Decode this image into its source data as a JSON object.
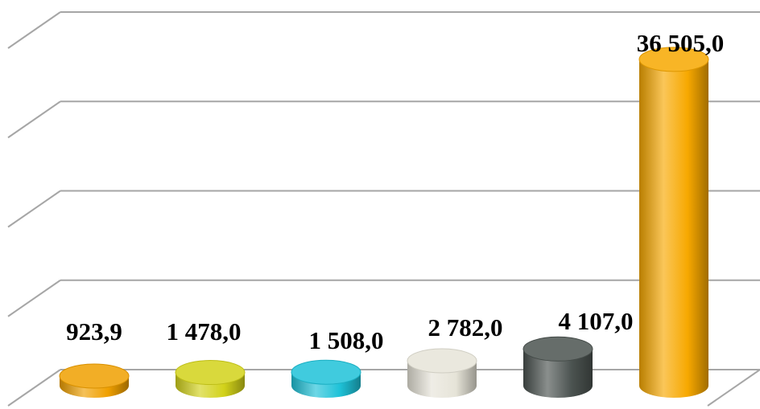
{
  "chart_data": {
    "type": "bar",
    "style": "3d-cylinder",
    "categories": [
      "",
      "",
      "",
      "",
      "",
      ""
    ],
    "values": [
      923.9,
      1478.0,
      1508.0,
      2782.0,
      4107.0,
      36505.0
    ],
    "data_labels": [
      "923,9",
      "1 478,0",
      "1 508,0",
      "2 782,0",
      "4 107,0",
      "36 505,0"
    ],
    "colors": [
      "#f0a000",
      "#d2d21a",
      "#1ec2d8",
      "#e6e4d8",
      "#4b5350",
      "#f7a800"
    ],
    "title": "",
    "xlabel": "",
    "ylabel": "",
    "ylim": [
      0,
      40000
    ],
    "grid": true,
    "legend": "none"
  }
}
